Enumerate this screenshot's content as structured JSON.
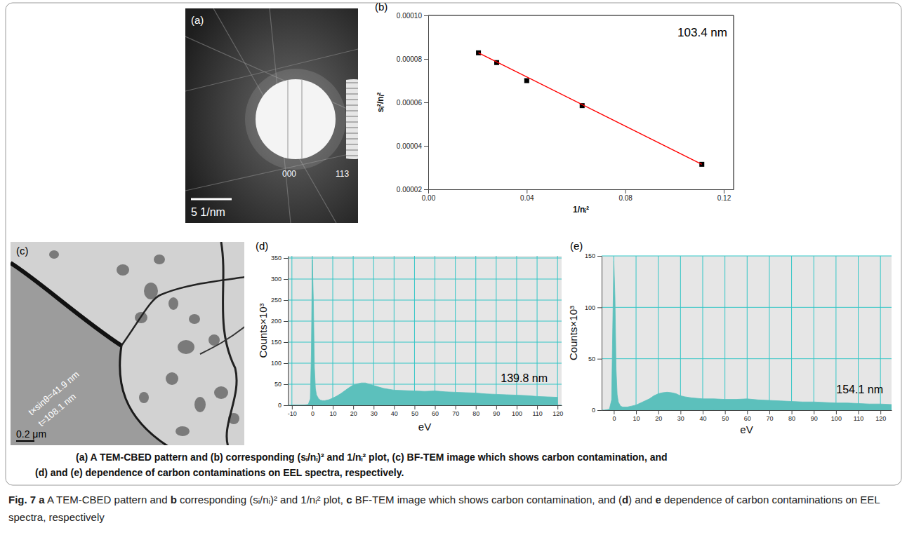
{
  "images": [
    {
      "panel": "(a)",
      "labels": [
        "000",
        "113"
      ],
      "scale_bar": "5 1/nm"
    },
    {
      "panel": "(c)",
      "labels": [
        "t×sinθ=41.9 nm",
        "t=108.1 nm"
      ],
      "scale_bar": "0.2 μm"
    }
  ],
  "chart_data": [
    {
      "type": "scatter",
      "annotations": [
        "(b)",
        "103.4 nm"
      ],
      "x_label": "1/nᵢ²",
      "y_label": "sᵢ²/nᵢ²",
      "series": [
        {
          "type": "scatter",
          "marker": "square",
          "color": "#000000",
          "x": [
            0.0204,
            0.0278,
            0.04,
            0.0625,
            0.1111
          ],
          "values": [
            8.28e-05,
            7.83e-05,
            7e-05,
            5.85e-05,
            3.15e-05
          ]
        },
        {
          "type": "line",
          "color": "#ff0000",
          "x": [
            0.0204,
            0.1111
          ],
          "values": [
            8.28e-05,
            3.15e-05
          ]
        }
      ],
      "xlim": [
        0,
        0.124
      ],
      "ylim": [
        2e-05,
        0.0001
      ],
      "xticks": [
        {
          "value": 0,
          "label": "0.00"
        },
        0.04,
        0.08,
        0.12
      ],
      "yticks": [
        2e-05,
        4e-05,
        6e-05,
        8e-05,
        {
          "value": 0.0001,
          "label": "0.00010"
        }
      ],
      "grid": false
    },
    {
      "type": "area",
      "annotations": [
        "(d)",
        "139.8 nm"
      ],
      "x_label": "eV",
      "y_label": "Counts×10³",
      "color": "#5cc0bc",
      "x": [
        -10,
        -8,
        -6,
        -4,
        -2,
        -1,
        -0.5,
        0,
        0.5,
        1,
        1.5,
        2,
        3,
        4,
        5,
        6,
        8,
        10,
        12,
        14,
        16,
        18,
        20,
        22,
        24,
        26,
        28,
        30,
        32,
        35,
        40,
        45,
        50,
        55,
        60,
        65,
        70,
        75,
        80,
        85,
        90,
        95,
        100,
        105,
        110,
        115,
        120
      ],
      "values": [
        0,
        0,
        0,
        0.5,
        2,
        15,
        120,
        345,
        250,
        90,
        40,
        25,
        16,
        12,
        11,
        11,
        13,
        17,
        22,
        28,
        35,
        42,
        48,
        51,
        53,
        53,
        50,
        47,
        44,
        40,
        36,
        35,
        34,
        33,
        34,
        32,
        31,
        30,
        29,
        27,
        26,
        25,
        24,
        23,
        21,
        20,
        19
      ],
      "xlim": [
        -12,
        122
      ],
      "ylim": [
        0,
        355
      ],
      "xticks": [
        -10,
        0,
        10,
        20,
        30,
        40,
        50,
        60,
        70,
        80,
        90,
        100,
        110,
        120
      ],
      "yticks": [
        0,
        50,
        100,
        150,
        200,
        250,
        300,
        350
      ],
      "grid": true
    },
    {
      "type": "area",
      "annotations": [
        "(e)",
        "154.1 nm"
      ],
      "x_label": "eV",
      "y_label": "Counts×10³",
      "color": "#5cc0bc",
      "x": [
        -4,
        -2,
        -1,
        -0.5,
        0,
        0.5,
        1,
        1.5,
        2,
        3,
        4,
        5,
        6,
        8,
        10,
        12,
        14,
        16,
        18,
        20,
        22,
        24,
        26,
        28,
        30,
        32,
        35,
        40,
        45,
        50,
        55,
        60,
        65,
        70,
        75,
        80,
        85,
        90,
        95,
        100,
        105,
        110,
        115,
        120,
        125
      ],
      "values": [
        0,
        1,
        10,
        80,
        145,
        110,
        40,
        15,
        8,
        4,
        3,
        3,
        3,
        4,
        5,
        7,
        9,
        11,
        14,
        16,
        17,
        17.5,
        17,
        16,
        14,
        13,
        12,
        11,
        11,
        10.5,
        10.5,
        11,
        10,
        9.5,
        9,
        8.5,
        8,
        8,
        7.5,
        7,
        7,
        6.5,
        6,
        6,
        5.5
      ],
      "xlim": [
        -5.5,
        125
      ],
      "ylim": [
        0,
        150
      ],
      "xticks": [
        0,
        10,
        20,
        30,
        40,
        50,
        60,
        70,
        80,
        90,
        100,
        110,
        120
      ],
      "yticks": [
        0,
        50,
        100,
        150
      ],
      "grid": true
    }
  ],
  "inner_caption": [
    "(a) A TEM-CBED pattern and (b) corresponding (sᵢ/nᵢ)² and 1/nᵢ² plot, (c) BF-TEM image which shows carbon contamination, and",
    "(d) and (e) dependence of carbon contaminations on EEL spectra, respectively."
  ],
  "caption": [
    {
      "text": "Fig. 7",
      "bold": true
    },
    {
      "text": " ",
      "bold": false
    },
    {
      "text": "a",
      "bold": true
    },
    {
      "text": " A TEM-CBED pattern and ",
      "bold": false
    },
    {
      "text": "b",
      "bold": true
    },
    {
      "text": " corresponding (sᵢ/nᵢ)² and 1/nᵢ² plot, ",
      "bold": false
    },
    {
      "text": "c",
      "bold": true
    },
    {
      "text": " BF-TEM image which shows carbon contamination, and (",
      "bold": false
    },
    {
      "text": "d",
      "bold": true
    },
    {
      "text": ") and ",
      "bold": false
    },
    {
      "text": "e",
      "bold": true
    },
    {
      "text": " dependence of carbon contaminations on EEL spectra, respectively",
      "bold": false
    }
  ]
}
